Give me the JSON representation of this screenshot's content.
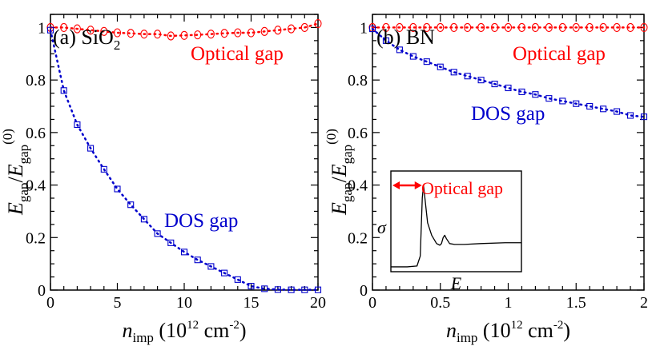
{
  "colors": {
    "optical": "#ff0000",
    "dos": "#0000cc",
    "axis": "#000000"
  },
  "chart_data": [
    {
      "type": "scatter",
      "panel_label": "(a) SiO",
      "panel_label_sub": "2",
      "xlabel_main": "n",
      "xlabel_sub": "imp",
      "xlabel_unit": " (10",
      "xlabel_exp": "12",
      "xlabel_unit2": " cm",
      "xlabel_exp2": "-2",
      "xlabel_close": ")",
      "xlim": [
        0,
        20
      ],
      "ylim": [
        0,
        1.05
      ],
      "xticks": [
        0,
        5,
        10,
        15,
        20
      ],
      "xtick_labels": [
        "0",
        "5",
        "10",
        "15",
        "20"
      ],
      "yticks": [
        0,
        0.2,
        0.4,
        0.6,
        0.8,
        1
      ],
      "ytick_labels": [
        "0",
        "0.2",
        "0.4",
        "0.6",
        "0.8",
        "1"
      ],
      "series": [
        {
          "name": "Optical gap",
          "marker": "circle",
          "color_key": "optical",
          "x": [
            0,
            1,
            2,
            3,
            4,
            5,
            6,
            7,
            8,
            9,
            10,
            11,
            12,
            13,
            14,
            15,
            16,
            17,
            18,
            19,
            20
          ],
          "y": [
            1.0,
            1.0,
            0.995,
            0.99,
            0.985,
            0.98,
            0.978,
            0.975,
            0.975,
            0.968,
            0.97,
            0.972,
            0.975,
            0.978,
            0.98,
            0.98,
            0.985,
            0.99,
            0.995,
            1.0,
            1.015
          ]
        },
        {
          "name": "DOS gap",
          "marker": "square",
          "color_key": "dos",
          "x": [
            0,
            1,
            2,
            3,
            4,
            5,
            6,
            7,
            8,
            9,
            10,
            11,
            12,
            13,
            14,
            15,
            16,
            17,
            18,
            19,
            20
          ],
          "y": [
            0.99,
            0.76,
            0.63,
            0.54,
            0.46,
            0.385,
            0.325,
            0.27,
            0.215,
            0.18,
            0.145,
            0.115,
            0.09,
            0.065,
            0.04,
            0.015,
            0.005,
            0.002,
            0.001,
            0.001,
            0.001
          ]
        }
      ],
      "annotations": [
        {
          "text": "Optical gap",
          "color_key": "optical"
        },
        {
          "text": "DOS gap",
          "color_key": "dos"
        }
      ]
    },
    {
      "type": "scatter",
      "panel_label": "(b) BN",
      "xlabel_main": "n",
      "xlabel_sub": "imp",
      "xlabel_unit": " (10",
      "xlabel_exp": "12",
      "xlabel_unit2": " cm",
      "xlabel_exp2": "-2",
      "xlabel_close": ")",
      "xlim": [
        0,
        2
      ],
      "ylim": [
        0,
        1.05
      ],
      "xticks": [
        0,
        0.5,
        1,
        1.5,
        2
      ],
      "xtick_labels": [
        "0",
        "0.5",
        "1",
        "1.5",
        "2"
      ],
      "yticks": [
        0,
        0.2,
        0.4,
        0.6,
        0.8,
        1
      ],
      "ytick_labels": [
        "0",
        "0.2",
        "0.4",
        "0.6",
        "0.8",
        "1"
      ],
      "series": [
        {
          "name": "Optical gap",
          "marker": "circle",
          "color_key": "optical",
          "x": [
            0,
            0.1,
            0.2,
            0.3,
            0.4,
            0.5,
            0.6,
            0.7,
            0.8,
            0.9,
            1.0,
            1.1,
            1.2,
            1.3,
            1.4,
            1.5,
            1.6,
            1.7,
            1.8,
            1.9,
            2.0
          ],
          "y": [
            1.0,
            1.0,
            1.0,
            1.0,
            1.0,
            1.0,
            1.0,
            1.0,
            1.0,
            1.0,
            1.0,
            1.0,
            1.0,
            1.0,
            1.0,
            1.0,
            1.0,
            1.0,
            1.0,
            1.0,
            1.0
          ]
        },
        {
          "name": "DOS gap",
          "marker": "square",
          "color_key": "dos",
          "x": [
            0,
            0.1,
            0.2,
            0.3,
            0.4,
            0.5,
            0.6,
            0.7,
            0.8,
            0.9,
            1.0,
            1.1,
            1.2,
            1.3,
            1.4,
            1.5,
            1.6,
            1.7,
            1.8,
            1.9,
            2.0
          ],
          "y": [
            0.995,
            0.95,
            0.915,
            0.89,
            0.87,
            0.85,
            0.83,
            0.815,
            0.8,
            0.785,
            0.77,
            0.755,
            0.745,
            0.73,
            0.72,
            0.71,
            0.7,
            0.69,
            0.68,
            0.665,
            0.66
          ]
        }
      ],
      "annotations": [
        {
          "text": "Optical gap",
          "color_key": "optical"
        },
        {
          "text": "DOS gap",
          "color_key": "dos"
        }
      ],
      "inset": {
        "ylabel": "σ",
        "xlabel": "E",
        "annotation": "Optical gap",
        "curve": [
          [
            0.0,
            0.02
          ],
          [
            0.2,
            0.02
          ],
          [
            0.32,
            0.03
          ],
          [
            0.36,
            0.15
          ],
          [
            0.385,
            0.85
          ],
          [
            0.4,
            1.0
          ],
          [
            0.42,
            0.82
          ],
          [
            0.45,
            0.55
          ],
          [
            0.5,
            0.4
          ],
          [
            0.56,
            0.3
          ],
          [
            0.6,
            0.28
          ],
          [
            0.62,
            0.3
          ],
          [
            0.64,
            0.37
          ],
          [
            0.66,
            0.4
          ],
          [
            0.68,
            0.36
          ],
          [
            0.72,
            0.3
          ],
          [
            0.78,
            0.29
          ],
          [
            0.9,
            0.29
          ],
          [
            1.1,
            0.3
          ],
          [
            1.4,
            0.31
          ],
          [
            1.6,
            0.31
          ]
        ]
      }
    }
  ],
  "ylabel": {
    "main": "E",
    "sub": "gap",
    "slash": "/",
    "main2": "E",
    "sub2": "gap",
    "sup2": "(0)"
  }
}
